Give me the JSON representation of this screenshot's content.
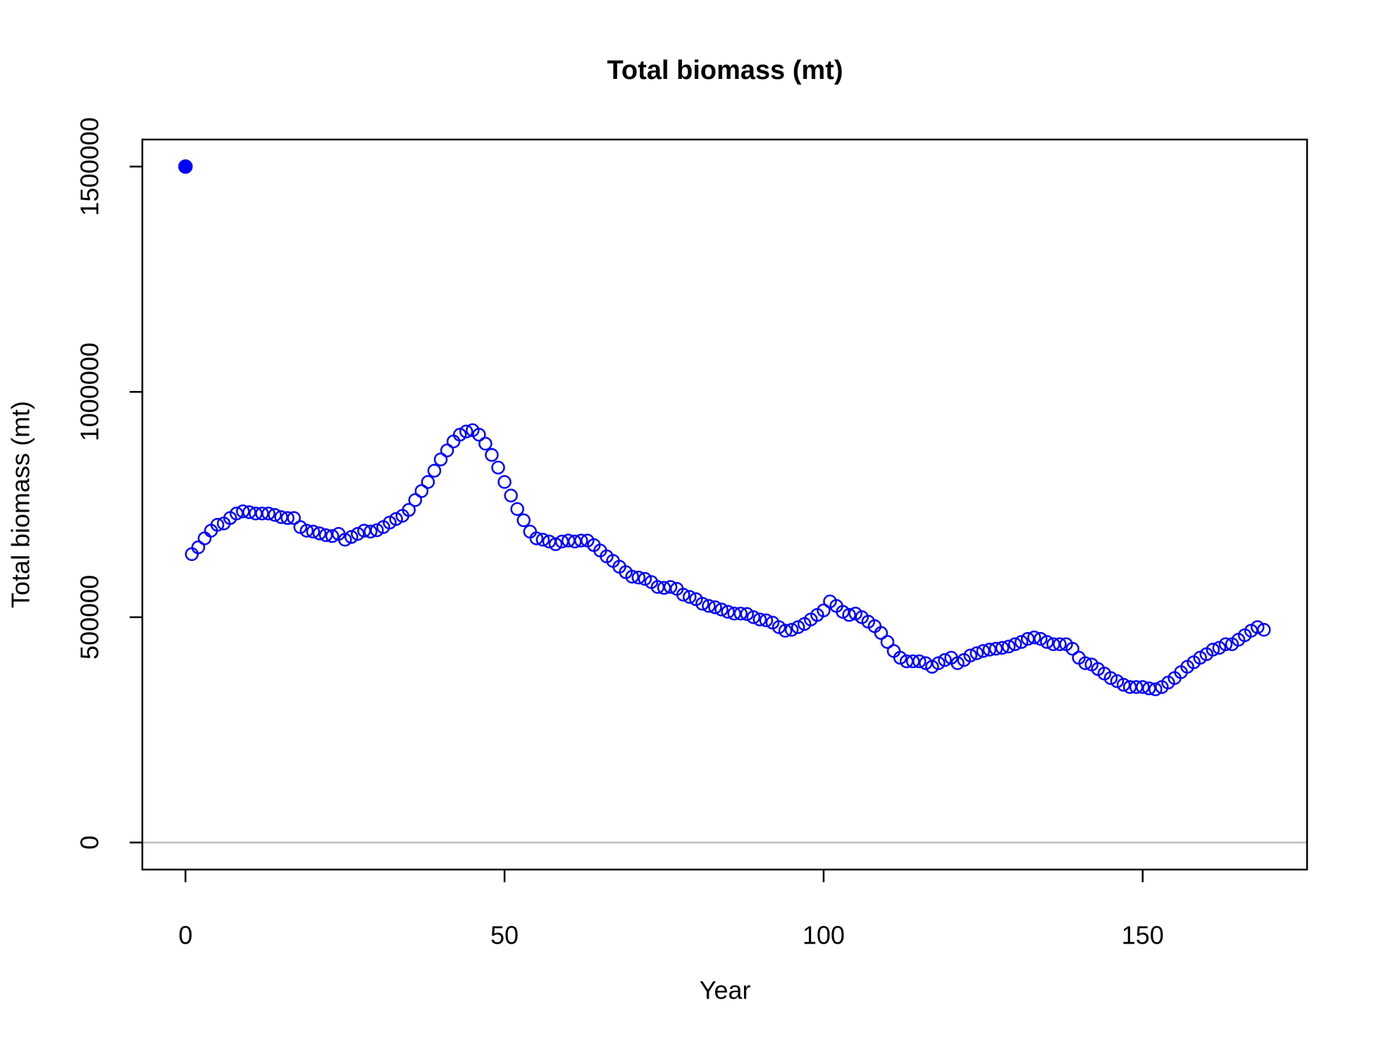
{
  "chart_data": {
    "type": "scatter",
    "title": "Total biomass (mt)",
    "xlabel": "Year",
    "ylabel": "Total biomass (mt)",
    "xlim": [
      -6.76,
      175.76
    ],
    "ylim": [
      -60000,
      1560000
    ],
    "xticks": [
      0,
      50,
      100,
      150
    ],
    "yticks": [
      0,
      500000,
      1000000,
      1500000
    ],
    "hline": 0,
    "hline_color": "#bebebe",
    "series": [
      {
        "color": "#0000ff",
        "marker": "filled",
        "x": [
          0
        ],
        "values": [
          1500000
        ]
      },
      {
        "color": "#0000ff",
        "marker": "open",
        "x": [
          1,
          2,
          3,
          4,
          5,
          6,
          7,
          8,
          9,
          10,
          11,
          12,
          13,
          14,
          15,
          16,
          17,
          18,
          19,
          20,
          21,
          22,
          23,
          24,
          25,
          26,
          27,
          28,
          29,
          30,
          31,
          32,
          33,
          34,
          35,
          36,
          37,
          38,
          39,
          40,
          41,
          42,
          43,
          44,
          45,
          46,
          47,
          48,
          49,
          50,
          51,
          52,
          53,
          54,
          55,
          56,
          57,
          58,
          59,
          60,
          61,
          62,
          63,
          64,
          65,
          66,
          67,
          68,
          69,
          70,
          71,
          72,
          73,
          74,
          75,
          76,
          77,
          78,
          79,
          80,
          81,
          82,
          83,
          84,
          85,
          86,
          87,
          88,
          89,
          90,
          91,
          92,
          93,
          94,
          95,
          96,
          97,
          98,
          99,
          100,
          101,
          102,
          103,
          104,
          105,
          106,
          107,
          108,
          109,
          110,
          111,
          112,
          113,
          114,
          115,
          116,
          117,
          118,
          119,
          120,
          121,
          122,
          123,
          124,
          125,
          126,
          127,
          128,
          129,
          130,
          131,
          132,
          133,
          134,
          135,
          136,
          137,
          138,
          139,
          140,
          141,
          142,
          143,
          144,
          145,
          146,
          147,
          148,
          149,
          150,
          151,
          152,
          153,
          154,
          155,
          156,
          157,
          158,
          159,
          160,
          161,
          162,
          163,
          164,
          165,
          166,
          167,
          168,
          169
        ],
        "values": [
          640000,
          655000,
          675000,
          692000,
          705000,
          708000,
          720000,
          730000,
          735000,
          733000,
          730000,
          730000,
          730000,
          727000,
          722000,
          720000,
          720000,
          700000,
          692000,
          690000,
          686000,
          682000,
          680000,
          685000,
          672000,
          678000,
          685000,
          692000,
          690000,
          693000,
          700000,
          710000,
          718000,
          725000,
          738000,
          760000,
          780000,
          800000,
          825000,
          850000,
          870000,
          890000,
          905000,
          912000,
          915000,
          905000,
          885000,
          860000,
          832000,
          800000,
          770000,
          740000,
          715000,
          690000,
          675000,
          672000,
          668000,
          662000,
          668000,
          670000,
          668000,
          670000,
          670000,
          660000,
          648000,
          635000,
          625000,
          612000,
          600000,
          590000,
          588000,
          585000,
          578000,
          567000,
          565000,
          567000,
          563000,
          550000,
          545000,
          540000,
          530000,
          525000,
          522000,
          517000,
          512000,
          508000,
          508000,
          507000,
          500000,
          495000,
          493000,
          488000,
          478000,
          470000,
          472000,
          478000,
          485000,
          495000,
          505000,
          515000,
          535000,
          525000,
          512000,
          505000,
          508000,
          500000,
          490000,
          480000,
          465000,
          445000,
          425000,
          410000,
          402000,
          402000,
          402000,
          398000,
          390000,
          398000,
          405000,
          410000,
          398000,
          405000,
          415000,
          420000,
          425000,
          428000,
          430000,
          432000,
          435000,
          440000,
          445000,
          452000,
          455000,
          452000,
          445000,
          440000,
          440000,
          440000,
          430000,
          410000,
          398000,
          395000,
          385000,
          375000,
          365000,
          358000,
          350000,
          345000,
          345000,
          345000,
          342000,
          340000,
          345000,
          355000,
          365000,
          378000,
          390000,
          400000,
          410000,
          418000,
          428000,
          432000,
          440000,
          440000,
          450000,
          460000,
          470000,
          478000,
          472000
        ]
      }
    ]
  }
}
